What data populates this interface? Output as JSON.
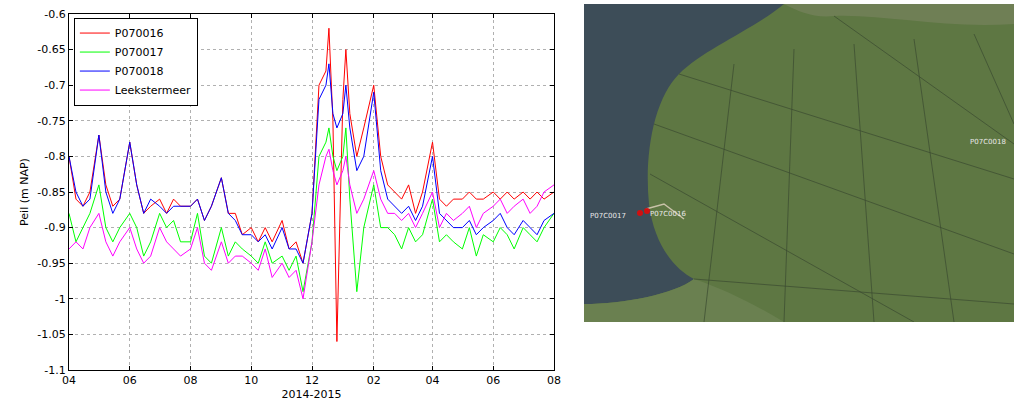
{
  "chart_data": {
    "type": "line",
    "x_label": "2014-2015",
    "y_label": "Peil (m NAP)",
    "x": [
      "2014-04-01",
      "2014-04-08",
      "2014-04-15",
      "2014-04-22",
      "2014-05-01",
      "2014-05-08",
      "2014-05-15",
      "2014-05-22",
      "2014-06-01",
      "2014-06-08",
      "2014-06-15",
      "2014-06-22",
      "2014-07-01",
      "2014-07-08",
      "2014-07-15",
      "2014-07-22",
      "2014-08-01",
      "2014-08-08",
      "2014-08-15",
      "2014-08-22",
      "2014-09-01",
      "2014-09-08",
      "2014-09-15",
      "2014-09-22",
      "2014-10-01",
      "2014-10-08",
      "2014-10-15",
      "2014-10-22",
      "2014-11-01",
      "2014-11-08",
      "2014-11-15",
      "2014-11-22",
      "2014-12-01",
      "2014-12-08",
      "2014-12-15",
      "2014-12-18",
      "2014-12-22",
      "2014-12-26",
      "2015-01-01",
      "2015-01-04",
      "2015-01-08",
      "2015-01-15",
      "2015-01-22",
      "2015-02-01",
      "2015-02-08",
      "2015-02-15",
      "2015-02-22",
      "2015-03-01",
      "2015-03-08",
      "2015-03-15",
      "2015-03-22",
      "2015-04-01",
      "2015-04-08",
      "2015-04-15",
      "2015-04-22",
      "2015-05-01",
      "2015-05-08",
      "2015-05-15",
      "2015-05-22",
      "2015-06-01",
      "2015-06-08",
      "2015-06-15",
      "2015-06-22",
      "2015-07-01",
      "2015-07-08",
      "2015-07-15",
      "2015-07-22",
      "2015-08-01"
    ],
    "series": [
      {
        "name": "P070016",
        "color": "#ff0000",
        "values": [
          -0.8,
          -0.86,
          -0.87,
          -0.85,
          -0.77,
          -0.84,
          -0.87,
          -0.86,
          -0.78,
          -0.84,
          -0.88,
          -0.87,
          -0.86,
          -0.88,
          -0.86,
          -0.87,
          -0.87,
          -0.86,
          -0.89,
          -0.87,
          -0.83,
          -0.88,
          -0.88,
          -0.91,
          -0.9,
          -0.92,
          -0.9,
          -0.92,
          -0.89,
          -0.93,
          -0.92,
          -0.95,
          -0.88,
          -0.7,
          -0.68,
          -0.62,
          -0.75,
          -1.06,
          -0.72,
          -0.65,
          -0.74,
          -0.8,
          -0.76,
          -0.7,
          -0.8,
          -0.84,
          -0.85,
          -0.86,
          -0.84,
          -0.88,
          -0.85,
          -0.78,
          -0.86,
          -0.87,
          -0.86,
          -0.86,
          -0.85,
          -0.86,
          -0.86,
          -0.85,
          -0.86,
          -0.85,
          -0.86,
          -0.85,
          -0.86,
          -0.85,
          -0.86,
          -0.85
        ]
      },
      {
        "name": "P070017",
        "color": "#00ff00",
        "values": [
          -0.88,
          -0.92,
          -0.9,
          -0.88,
          -0.84,
          -0.9,
          -0.92,
          -0.9,
          -0.88,
          -0.9,
          -0.94,
          -0.92,
          -0.88,
          -0.9,
          -0.89,
          -0.92,
          -0.92,
          -0.88,
          -0.94,
          -0.95,
          -0.9,
          -0.94,
          -0.92,
          -0.93,
          -0.94,
          -0.95,
          -0.92,
          -0.95,
          -0.94,
          -0.96,
          -0.94,
          -0.99,
          -0.92,
          -0.8,
          -0.78,
          -0.76,
          -0.8,
          -0.82,
          -0.8,
          -0.76,
          -0.86,
          -0.99,
          -0.9,
          -0.84,
          -0.9,
          -0.9,
          -0.91,
          -0.93,
          -0.9,
          -0.92,
          -0.91,
          -0.86,
          -0.92,
          -0.91,
          -0.92,
          -0.93,
          -0.9,
          -0.94,
          -0.91,
          -0.92,
          -0.9,
          -0.91,
          -0.93,
          -0.9,
          -0.91,
          -0.92,
          -0.9,
          -0.88
        ]
      },
      {
        "name": "P070018",
        "color": "#0000ff",
        "values": [
          -0.8,
          -0.85,
          -0.87,
          -0.86,
          -0.77,
          -0.85,
          -0.88,
          -0.86,
          -0.78,
          -0.84,
          -0.88,
          -0.86,
          -0.87,
          -0.88,
          -0.87,
          -0.87,
          -0.87,
          -0.86,
          -0.89,
          -0.87,
          -0.83,
          -0.88,
          -0.89,
          -0.91,
          -0.91,
          -0.92,
          -0.91,
          -0.93,
          -0.9,
          -0.93,
          -0.93,
          -0.95,
          -0.88,
          -0.72,
          -0.7,
          -0.67,
          -0.74,
          -0.76,
          -0.74,
          -0.7,
          -0.76,
          -0.82,
          -0.8,
          -0.71,
          -0.82,
          -0.86,
          -0.87,
          -0.88,
          -0.87,
          -0.89,
          -0.87,
          -0.8,
          -0.88,
          -0.89,
          -0.9,
          -0.9,
          -0.89,
          -0.91,
          -0.9,
          -0.89,
          -0.88,
          -0.9,
          -0.91,
          -0.89,
          -0.9,
          -0.91,
          -0.89,
          -0.88
        ]
      },
      {
        "name": "Leekstermeer",
        "color": "#ff00ff",
        "values": [
          -0.93,
          -0.92,
          -0.93,
          -0.9,
          -0.88,
          -0.92,
          -0.94,
          -0.92,
          -0.9,
          -0.93,
          -0.95,
          -0.94,
          -0.9,
          -0.92,
          -0.93,
          -0.94,
          -0.93,
          -0.9,
          -0.95,
          -0.96,
          -0.92,
          -0.95,
          -0.94,
          -0.94,
          -0.95,
          -0.96,
          -0.93,
          -0.97,
          -0.95,
          -0.97,
          -0.96,
          -1.0,
          -0.92,
          -0.84,
          -0.8,
          -0.79,
          -0.82,
          -0.84,
          -0.82,
          -0.8,
          -0.84,
          -0.88,
          -0.86,
          -0.82,
          -0.86,
          -0.88,
          -0.88,
          -0.89,
          -0.88,
          -0.9,
          -0.88,
          -0.85,
          -0.9,
          -0.88,
          -0.89,
          -0.88,
          -0.87,
          -0.9,
          -0.88,
          -0.87,
          -0.86,
          -0.88,
          -0.87,
          -0.86,
          -0.88,
          -0.87,
          -0.85,
          -0.84
        ]
      }
    ],
    "xlim": [
      "2014-04-01",
      "2015-08-01"
    ],
    "xticks": [
      {
        "value": "2014-04-01",
        "label": "04"
      },
      {
        "value": "2014-06-01",
        "label": "06"
      },
      {
        "value": "2014-08-01",
        "label": "08"
      },
      {
        "value": "2014-10-01",
        "label": "10"
      },
      {
        "value": "2014-12-01",
        "label": "12"
      },
      {
        "value": "2015-02-01",
        "label": "02"
      },
      {
        "value": "2015-04-01",
        "label": "04"
      },
      {
        "value": "2015-06-01",
        "label": "06"
      },
      {
        "value": "2015-08-01",
        "label": "08"
      }
    ],
    "ylim": [
      -1.1,
      -0.6
    ],
    "yticks": [
      -1.1,
      -1.05,
      -1,
      -0.95,
      -0.9,
      -0.85,
      -0.8,
      -0.75,
      -0.7,
      -0.65,
      -0.6
    ],
    "grid": true,
    "legend": "top left"
  },
  "map": {
    "labels": [
      "P07C0017",
      "P07C0016",
      "P07C0018"
    ]
  }
}
